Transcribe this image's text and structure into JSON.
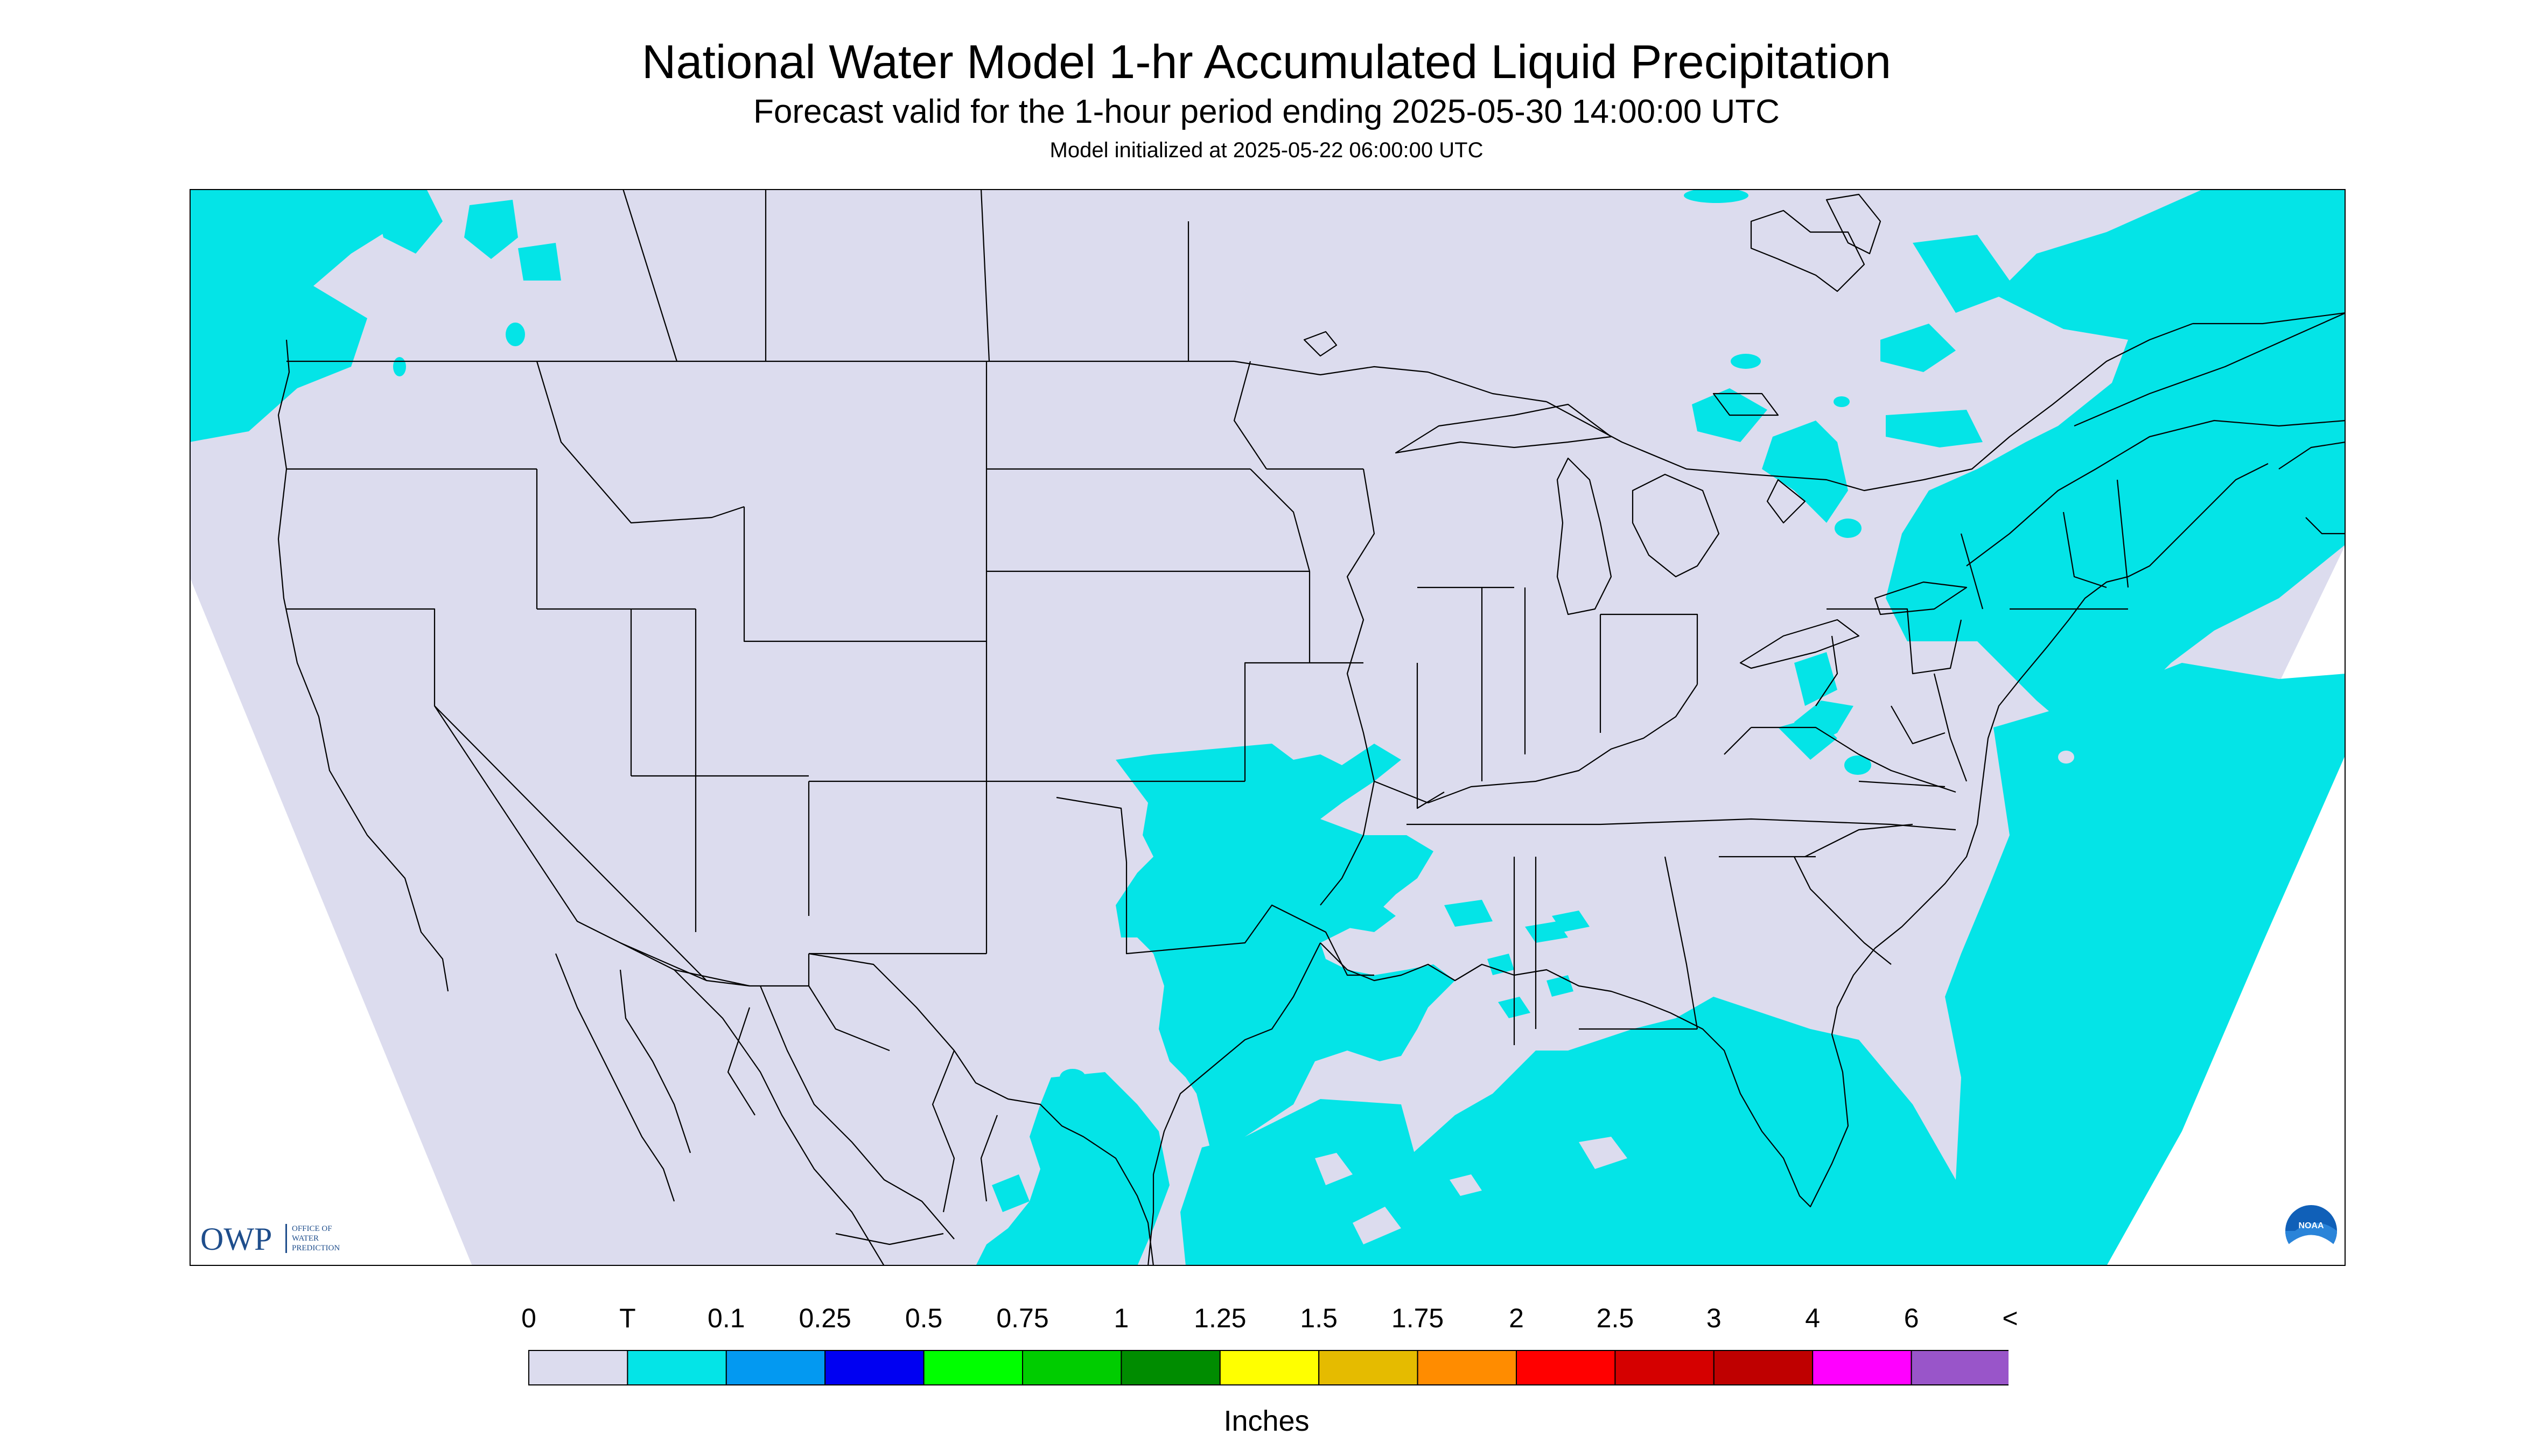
{
  "header": {
    "title": "National Water Model 1-hr Accumulated Liquid Precipitation",
    "subtitle": "Forecast valid for the 1-hour period ending 2025-05-30 14:00:00 UTC",
    "init_line": "Model initialized at 2025-05-22 06:00:00 UTC"
  },
  "map": {
    "region": "CONUS",
    "background_color": "#dcdcee",
    "precip_color": "#04e4e7",
    "boundary_color": "#000000",
    "field_category": "T"
  },
  "logos": {
    "owp_text": "OWP",
    "owp_sub": [
      "OFFICE OF",
      "WATER",
      "PREDICTION"
    ],
    "noaa_text": "NOAA"
  },
  "colorbar": {
    "labels": [
      "0",
      "T",
      "0.1",
      "0.25",
      "0.5",
      "0.75",
      "1",
      "1.25",
      "1.5",
      "1.75",
      "2",
      "2.5",
      "3",
      "4",
      "6",
      "<"
    ],
    "colors": [
      "#dcdcee",
      "#04e4e7",
      "#0399f1",
      "#0000f2",
      "#00ff00",
      "#00cc00",
      "#008c00",
      "#ffff00",
      "#e5bb00",
      "#ff8c00",
      "#ff0000",
      "#d50000",
      "#bf0000",
      "#ff00ff",
      "#9955c9"
    ],
    "units": "Inches"
  }
}
